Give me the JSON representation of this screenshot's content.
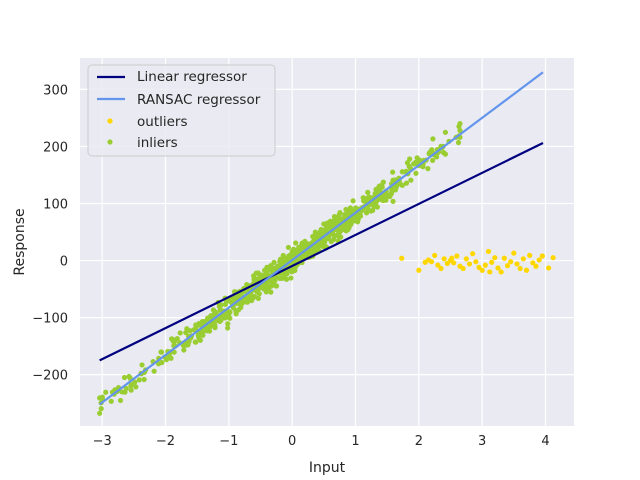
{
  "chart_data": {
    "type": "scatter",
    "xlabel": "Input",
    "ylabel": "Response",
    "xlim": [
      -3.35,
      4.45
    ],
    "ylim": [
      -290,
      355
    ],
    "xticks": [
      -3,
      -2,
      -1,
      0,
      1,
      2,
      3,
      4
    ],
    "yticks": [
      -200,
      -100,
      0,
      100,
      200,
      300
    ],
    "xtick_labels": [
      "−3",
      "−2",
      "−1",
      "0",
      "1",
      "2",
      "3",
      "4"
    ],
    "ytick_labels": [
      "−200",
      "−100",
      "0",
      "100",
      "200",
      "300"
    ],
    "grid": true,
    "background": "#eaeaf2",
    "legend": {
      "position": "top-left",
      "entries": [
        {
          "label": "Linear regressor",
          "kind": "line",
          "color": "#000080"
        },
        {
          "label": "RANSAC regressor",
          "kind": "line",
          "color": "#6495ed"
        },
        {
          "label": "outliers",
          "kind": "marker",
          "color": "#ffd700"
        },
        {
          "label": "inliers",
          "kind": "marker",
          "color": "#9acd32"
        }
      ]
    },
    "lines": [
      {
        "name": "Linear regressor",
        "color": "#000080",
        "x": [
          -3.04,
          3.96
        ],
        "y": [
          -175,
          206
        ]
      },
      {
        "name": "RANSAC regressor",
        "color": "#6495ed",
        "x": [
          -3.04,
          3.96
        ],
        "y": [
          -252,
          330
        ]
      }
    ],
    "inliers": {
      "color": "#9acd32",
      "slope": 83,
      "intercept": 0,
      "x_range": [
        -3.04,
        2.65
      ],
      "noise": 10,
      "count": 900
    },
    "outliers": {
      "color": "#ffd700",
      "x": [
        1.73,
        2.0,
        2.1,
        2.15,
        2.2,
        2.25,
        2.3,
        2.35,
        2.4,
        2.45,
        2.5,
        2.52,
        2.55,
        2.6,
        2.65,
        2.7,
        2.75,
        2.8,
        2.85,
        2.9,
        2.95,
        3.0,
        3.05,
        3.1,
        3.12,
        3.15,
        3.2,
        3.25,
        3.3,
        3.35,
        3.4,
        3.45,
        3.5,
        3.55,
        3.6,
        3.65,
        3.7,
        3.75,
        3.8,
        3.85,
        3.9,
        3.95,
        4.05,
        4.12
      ],
      "y": [
        4,
        -17,
        -3,
        1,
        -2,
        9,
        -8,
        -14,
        3,
        -5,
        0,
        4,
        -4,
        8,
        -10,
        -14,
        3,
        -6,
        12,
        -2,
        -12,
        -17,
        -8,
        16,
        -20,
        -3,
        5,
        -13,
        -20,
        4,
        -9,
        -2,
        13,
        -6,
        -14,
        3,
        -17,
        9,
        -4,
        -10,
        1,
        8,
        -13,
        5
      ]
    }
  }
}
